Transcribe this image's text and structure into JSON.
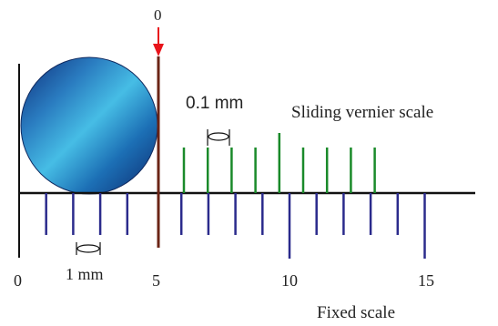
{
  "top_zero_label": "0",
  "vernier": {
    "label": "Sliding vernier scale",
    "resolution_label": "0.1 mm",
    "color": "#1a8a2a"
  },
  "fixed": {
    "label": "Fixed scale",
    "unit_label": "1 mm",
    "color": "#2b2b8c",
    "tick_labels": [
      "0",
      "5",
      "10",
      "15"
    ]
  },
  "pointer_color": "#e8141b",
  "jaw_color": "#6b2416",
  "ball_colors": [
    "#0e2e7a",
    "#1f90c8",
    "#45c2e8"
  ]
}
